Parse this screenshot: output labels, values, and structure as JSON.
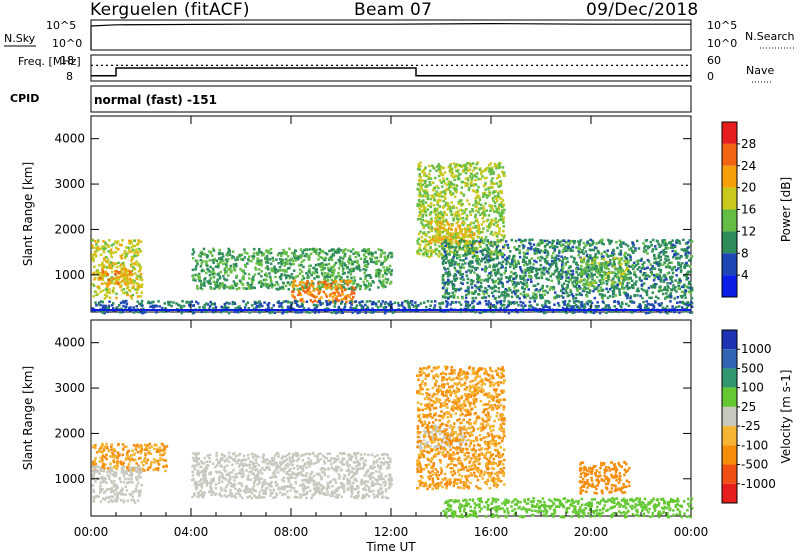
{
  "header": {
    "station": "Kerguelen (fitACF)",
    "beam": "Beam 07",
    "date": "09/Dec/2018"
  },
  "colors": {
    "power_scale": [
      "#0a1ee6",
      "#1e46b4",
      "#2d8c5a",
      "#64be46",
      "#c8c81e",
      "#f5a00a",
      "#f06414",
      "#e61e1e"
    ],
    "velocity_scale": [
      "#e61e1e",
      "#f05014",
      "#f58c0a",
      "#f5b432",
      "#c8c8be",
      "#64c832",
      "#32966e",
      "#3264b4",
      "#1e32b4"
    ],
    "noise_trace": "#000000"
  },
  "chart_data": [
    {
      "type": "line",
      "panel": "noise",
      "ylabel_left": "N.Sky",
      "ylabel_right": "N.Search",
      "left_ticks": [
        "10^5",
        "10^0"
      ],
      "right_ticks": [
        "10^5",
        "10^0"
      ],
      "legend_right": "N.Search (dotted)",
      "series": [
        {
          "style": "solid",
          "x": [
            "00:00",
            "01:00",
            "06:00",
            "12:00",
            "16:00",
            "20:00",
            "24:00"
          ],
          "y": [
            4.0,
            4.2,
            4.3,
            4.3,
            4.4,
            4.3,
            4.3
          ]
        }
      ]
    },
    {
      "type": "line",
      "panel": "frequency",
      "ylabel_left": "Freq. [MHz]",
      "ylabel_right": "Nave",
      "left_ticks": [
        18,
        8
      ],
      "right_ticks": [
        60,
        0
      ],
      "series": [
        {
          "style": "solid",
          "x": [
            "00:00",
            "01:00",
            "01:00",
            "13:00",
            "13:00",
            "24:00"
          ],
          "y": [
            10,
            10,
            13,
            13,
            10,
            10
          ]
        },
        {
          "style": "dotted",
          "x": [
            "00:00",
            "24:00"
          ],
          "y": [
            14,
            14
          ]
        }
      ]
    },
    {
      "type": "label",
      "panel": "cpid",
      "label": "CPID",
      "text": "normal (fast) -151"
    },
    {
      "type": "heatmap",
      "panel": "power",
      "ylabel": "Slant Range [km]",
      "yticks": [
        1000,
        2000,
        3000,
        4000
      ],
      "ylim": [
        180,
        4500
      ],
      "colorbar": {
        "label": "Power [dB]",
        "ticks": [
          4,
          8,
          12,
          16,
          20,
          24,
          28
        ],
        "range": [
          0,
          32
        ]
      },
      "scatter_regions": [
        {
          "t0": 0.0,
          "t1": 2.0,
          "r0": 500,
          "r1": 1800,
          "level": 18
        },
        {
          "t0": 0.3,
          "t1": 1.6,
          "r0": 800,
          "r1": 1200,
          "level": 22
        },
        {
          "t0": 4.0,
          "t1": 12.0,
          "r0": 700,
          "r1": 1600,
          "level": 12
        },
        {
          "t0": 8.0,
          "t1": 10.5,
          "r0": 400,
          "r1": 900,
          "level": 24
        },
        {
          "t0": 13.0,
          "t1": 16.5,
          "r0": 1400,
          "r1": 3500,
          "level": 16
        },
        {
          "t0": 13.5,
          "t1": 15.5,
          "r0": 1700,
          "r1": 2200,
          "level": 20
        },
        {
          "t0": 14.0,
          "t1": 24.0,
          "r0": 500,
          "r1": 1800,
          "level": 10
        },
        {
          "t0": 19.5,
          "t1": 21.5,
          "r0": 800,
          "r1": 1400,
          "level": 14
        },
        {
          "t0": 0.0,
          "t1": 24.0,
          "r0": 180,
          "r1": 450,
          "level": 8
        }
      ]
    },
    {
      "type": "heatmap",
      "panel": "velocity",
      "ylabel": "Slant Range [km]",
      "xlabel": "Time UT",
      "xticks": [
        "00:00",
        "04:00",
        "08:00",
        "12:00",
        "16:00",
        "20:00",
        "00:00"
      ],
      "yticks": [
        1000,
        2000,
        3000,
        4000
      ],
      "ylim": [
        180,
        4500
      ],
      "colorbar": {
        "label": "Velocity [m s-1]",
        "ticks": [
          -1000,
          -500,
          -100,
          -25,
          25,
          100,
          500,
          1000
        ]
      },
      "scatter_regions": [
        {
          "t0": 0.0,
          "t1": 3.0,
          "r0": 1200,
          "r1": 1800,
          "level": -100
        },
        {
          "t0": 0.0,
          "t1": 2.0,
          "r0": 500,
          "r1": 1300,
          "level": 0
        },
        {
          "t0": 4.0,
          "t1": 12.0,
          "r0": 600,
          "r1": 1600,
          "level": 0
        },
        {
          "t0": 13.0,
          "t1": 15.0,
          "r0": 1700,
          "r1": 2200,
          "level": 0
        },
        {
          "t0": 13.0,
          "t1": 16.5,
          "r0": 800,
          "r1": 3500,
          "level": -100
        },
        {
          "t0": 19.5,
          "t1": 21.5,
          "r0": 700,
          "r1": 1400,
          "level": -300
        },
        {
          "t0": 14.0,
          "t1": 24.0,
          "r0": 180,
          "r1": 600,
          "level": 60
        }
      ]
    }
  ]
}
